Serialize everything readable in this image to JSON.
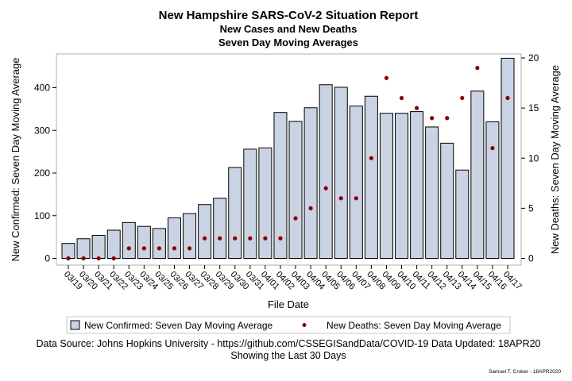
{
  "chart_data": {
    "type": "bar",
    "title": "New Hampshire SARS-CoV-2 Situation Report",
    "subtitle_lines": [
      "New Cases and New Deaths",
      "Seven Day Moving Averages"
    ],
    "xlabel": "File Date",
    "ylabel": "New Confirmed: Seven Day Moving Average",
    "y2label": "New Deaths: Seven Day Moving Average",
    "ylim": [
      0,
      480
    ],
    "yticks": [
      0,
      100,
      200,
      300,
      400
    ],
    "y2lim": [
      0,
      20
    ],
    "y2ticks": [
      0,
      5,
      10,
      15,
      20
    ],
    "categories": [
      "03/19",
      "03/20",
      "03/21",
      "03/22",
      "03/23",
      "03/24",
      "03/25",
      "03/26",
      "03/27",
      "03/28",
      "03/29",
      "03/30",
      "03/31",
      "04/01",
      "04/02",
      "04/03",
      "04/04",
      "04/05",
      "04/06",
      "04/07",
      "04/08",
      "04/09",
      "04/10",
      "04/11",
      "04/12",
      "04/13",
      "04/14",
      "04/15",
      "04/16",
      "04/17"
    ],
    "series": [
      {
        "name": "New Confirmed: Seven Day Moving Average",
        "kind": "bar",
        "axis": "left",
        "color": "#c9d3e3",
        "values": [
          35,
          46,
          54,
          66,
          84,
          75,
          70,
          95,
          105,
          126,
          141,
          213,
          256,
          259,
          342,
          321,
          353,
          407,
          401,
          357,
          380,
          340,
          340,
          344,
          308,
          270,
          207,
          392,
          320,
          469
        ]
      },
      {
        "name": "New Deaths: Seven Day Moving Average",
        "kind": "scatter",
        "axis": "right",
        "color": "#8b0000",
        "values": [
          0,
          0,
          0,
          0,
          1,
          1,
          1,
          1,
          1,
          2,
          2,
          2,
          2,
          2,
          2,
          4,
          5,
          7,
          6,
          6,
          10,
          18,
          16,
          15,
          14,
          14,
          16,
          19,
          11,
          16
        ]
      }
    ],
    "grid": false,
    "legend": "bottom"
  },
  "footer": {
    "source": "Data Source: Johns Hopkins University - https://github.com/CSSEGISandData/COVID-19 Data Updated: 18APR20",
    "showing": "Showing the Last 30 Days",
    "credit": "Samuel T. Croker - 18APR2020"
  },
  "colors": {
    "bar_fill": "#c9d3e3",
    "bar_stroke": "#000000",
    "dot": "#8b0000",
    "frame": "#b0b0b0"
  }
}
